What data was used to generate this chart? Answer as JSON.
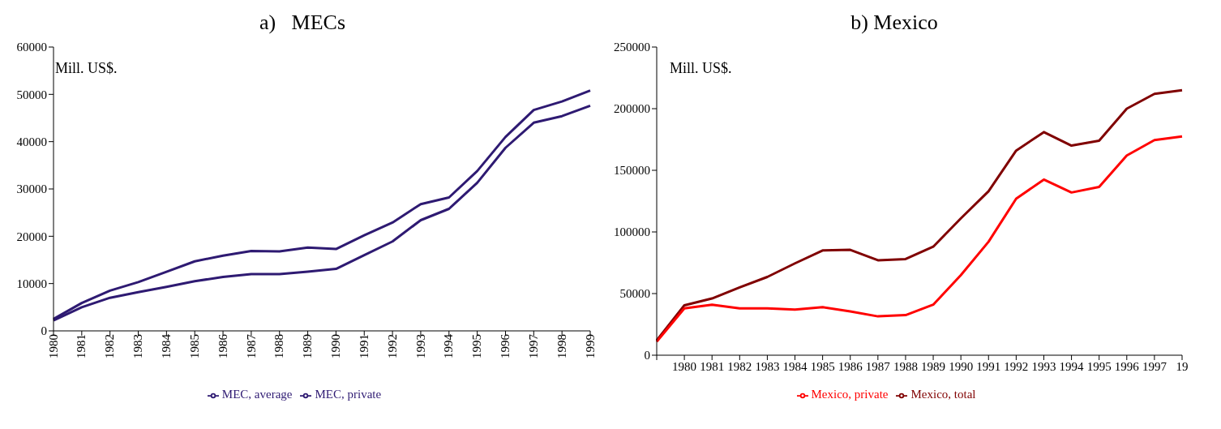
{
  "chart_data": [
    {
      "type": "line",
      "title": "a)   MECs",
      "annotations": [
        "Mill. US$."
      ],
      "categories": [
        "1980",
        "1981",
        "1982",
        "1983",
        "1984",
        "1985",
        "1986",
        "1987",
        "1988",
        "1989",
        "1990",
        "1991",
        "1992",
        "1993",
        "1994",
        "1995",
        "1996",
        "1997",
        "1998",
        "1999"
      ],
      "ylim": [
        0,
        60000
      ],
      "yticks": [
        0,
        10000,
        20000,
        30000,
        40000,
        50000,
        60000
      ],
      "grid": false,
      "legend": "bottom",
      "marker": "none",
      "series": [
        {
          "name": "MEC, private",
          "color": "#2e1a72",
          "values": [
            2200,
            5000,
            7000,
            8200,
            9300,
            10500,
            11400,
            12000,
            12000,
            12500,
            13100,
            16000,
            18900,
            23400,
            25800,
            31300,
            38700,
            44000,
            45400,
            47600
          ]
        },
        {
          "name": "MEC, average",
          "color": "#2e1a72",
          "values": [
            2500,
            5900,
            8500,
            10300,
            12500,
            14700,
            15900,
            16900,
            16800,
            17600,
            17300,
            20200,
            22900,
            26800,
            28200,
            33800,
            41000,
            46700,
            48500,
            50800
          ]
        }
      ]
    },
    {
      "type": "line",
      "title": "b) Mexico",
      "annotations": [
        "Mill. US$."
      ],
      "categories": [
        null,
        "1980",
        "1981",
        "1982",
        "1983",
        "1984",
        "1985",
        "1986",
        "1987",
        "1988",
        "1989",
        "1990",
        "1991",
        "1992",
        "1993",
        "1994",
        "1995",
        "1996",
        "1997",
        "19"
      ],
      "ylim": [
        0,
        250000
      ],
      "yticks": [
        0,
        50000,
        100000,
        150000,
        200000,
        250000
      ],
      "grid": false,
      "legend": "bottom",
      "marker": "none",
      "series": [
        {
          "name": "Mexico, total",
          "color": "#800000",
          "values": [
            12000,
            40500,
            46000,
            55000,
            63500,
            74500,
            85000,
            85500,
            77000,
            78000,
            88000,
            111000,
            133000,
            166000,
            181000,
            170000,
            174000,
            200000,
            212000,
            215000
          ]
        },
        {
          "name": "Mexico, private",
          "color": "#ff0000",
          "values": [
            11000,
            38000,
            41000,
            38000,
            38000,
            37000,
            39000,
            35500,
            31500,
            32500,
            41000,
            65000,
            92000,
            127000,
            142500,
            132000,
            136500,
            162000,
            174500,
            177500
          ]
        }
      ]
    }
  ]
}
